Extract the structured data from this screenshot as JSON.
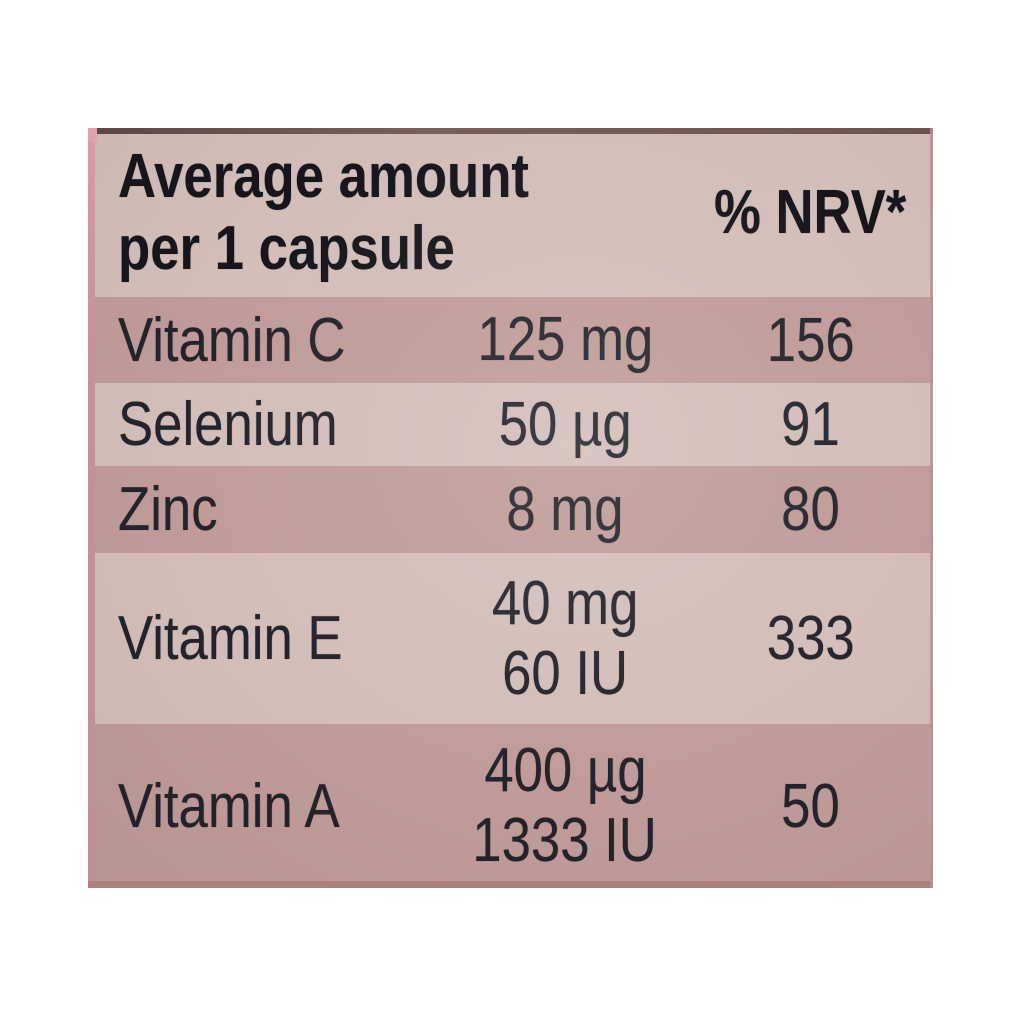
{
  "colors": {
    "page_background": "#ffffff",
    "label_light": "#d3beb9",
    "row_shaded": "#c09b99",
    "text": "#23232b",
    "header_text": "#15151b",
    "edge_top": "#6b544f",
    "edge_left": "#c2929c",
    "edge_bottom": "#aa817e"
  },
  "table": {
    "header": {
      "amount_label_lines": [
        "Average amount",
        "per 1 capsule"
      ],
      "nrv_label": "% NRV*"
    },
    "rows": [
      {
        "name": "Vitamin C",
        "amount_lines": [
          "125 mg"
        ],
        "nrv": "156",
        "shaded": true
      },
      {
        "name": "Selenium",
        "amount_lines": [
          "50 µg"
        ],
        "nrv": "91",
        "shaded": false
      },
      {
        "name": "Zinc",
        "amount_lines": [
          "8 mg"
        ],
        "nrv": "80",
        "shaded": true
      },
      {
        "name": "Vitamin E",
        "amount_lines": [
          "40 mg",
          "60 IU"
        ],
        "nrv": "333",
        "shaded": false
      },
      {
        "name": "Vitamin A",
        "amount_lines": [
          "400 µg",
          "1333 IU"
        ],
        "nrv": "50",
        "shaded": true
      }
    ]
  }
}
